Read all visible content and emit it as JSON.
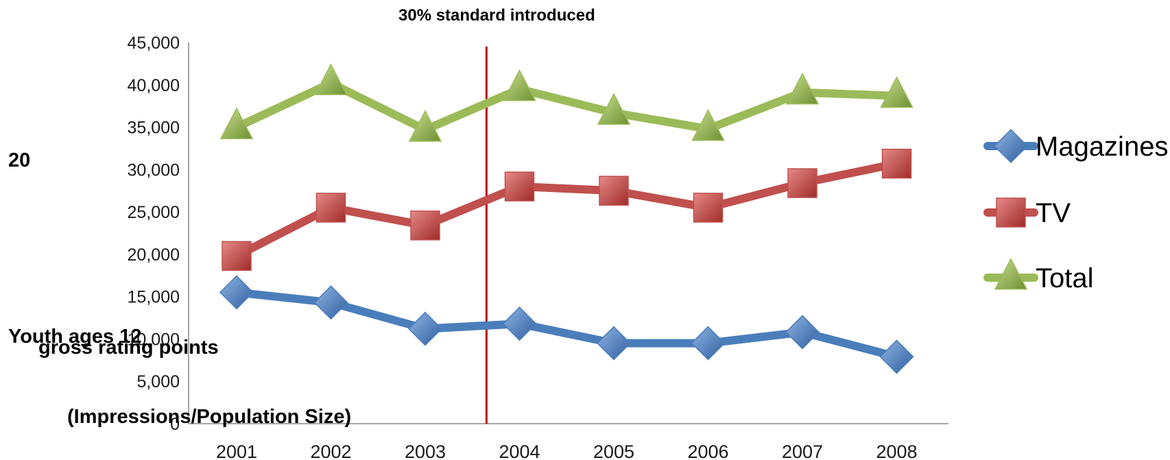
{
  "chart_data": {
    "type": "line",
    "categories": [
      "2001",
      "2002",
      "2003",
      "2004",
      "2005",
      "2006",
      "2007",
      "2008"
    ],
    "ylim": [
      0,
      45000
    ],
    "ytick_labels": [
      "0",
      "5,000",
      "10,000",
      "15,000",
      "20,000",
      "25,000",
      "30,000",
      "35,000",
      "40,000",
      "45,000"
    ],
    "ytick_values": [
      0,
      5000,
      10000,
      15000,
      20000,
      25000,
      30000,
      35000,
      40000,
      45000
    ],
    "ylabel_lines": [
      "20",
      "Youth ages 12",
      "gross rating points",
      "(Impressions/Population Size)"
    ],
    "annotation": "30% standard   introduced",
    "annotation_x": 2003.65,
    "grid": false,
    "legend_position": "right",
    "series": [
      {
        "name": "Magazines",
        "values": [
          15500,
          14300,
          11200,
          11800,
          9500,
          9500,
          10800,
          7900
        ],
        "color": "#4a7ebb",
        "marker": "diamond"
      },
      {
        "name": "TV",
        "values": [
          19800,
          25500,
          23400,
          28000,
          27500,
          25500,
          28400,
          30700
        ],
        "color": "#c0504d",
        "marker": "square"
      },
      {
        "name": "Total",
        "values": [
          35000,
          40200,
          34700,
          39500,
          36700,
          34800,
          39100,
          38700
        ],
        "color": "#9bbb59",
        "marker": "triangle"
      }
    ],
    "colors": {
      "axis": "#a6a6a6",
      "annotation_line": "#c00000"
    }
  }
}
